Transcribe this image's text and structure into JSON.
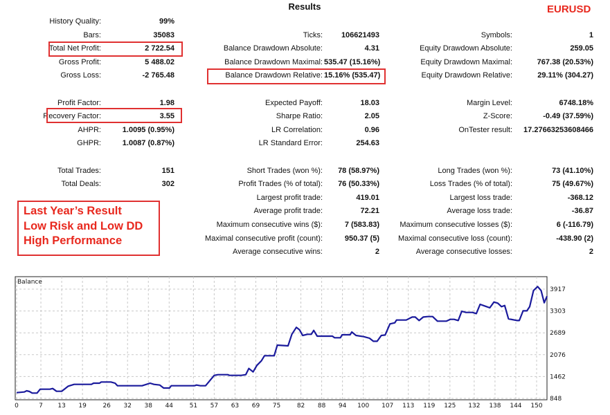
{
  "header": {
    "title": "Results",
    "symbol": "EURUSD"
  },
  "col1": [
    {
      "label": "History Quality:",
      "value": "99%"
    },
    {
      "label": "Bars:",
      "value": "35083"
    },
    {
      "label": "Total Net Profit:",
      "value": "2 722.54"
    },
    {
      "label": "Gross Profit:",
      "value": "5 488.02"
    },
    {
      "label": "Gross Loss:",
      "value": "-2 765.48"
    },
    {
      "label": "Profit Factor:",
      "value": "1.98"
    },
    {
      "label": "Recovery Factor:",
      "value": "3.55"
    },
    {
      "label": "AHPR:",
      "value": "1.0095 (0.95%)"
    },
    {
      "label": "GHPR:",
      "value": "1.0087 (0.87%)"
    },
    {
      "label": "Total Trades:",
      "value": "151"
    },
    {
      "label": "Total Deals:",
      "value": "302"
    }
  ],
  "col2": [
    {
      "label": "Ticks:",
      "value": "106621493"
    },
    {
      "label": "Balance Drawdown Absolute:",
      "value": "4.31"
    },
    {
      "label": "Balance Drawdown Maximal:",
      "value": "535.47 (15.16%)"
    },
    {
      "label": "Balance Drawdown Relative:",
      "value": "15.16% (535.47)"
    },
    {
      "label": "Expected Payoff:",
      "value": "18.03"
    },
    {
      "label": "Sharpe Ratio:",
      "value": "2.05"
    },
    {
      "label": "LR Correlation:",
      "value": "0.96"
    },
    {
      "label": "LR Standard Error:",
      "value": "254.63"
    },
    {
      "label": "Short Trades (won %):",
      "value": "78 (58.97%)"
    },
    {
      "label": "Profit Trades (% of total):",
      "value": "76 (50.33%)"
    },
    {
      "label": "Largest profit trade:",
      "value": "419.01"
    },
    {
      "label": "Average profit trade:",
      "value": "72.21"
    },
    {
      "label": "Maximum consecutive wins ($):",
      "value": "7 (583.83)"
    },
    {
      "label": "Maximal consecutive profit (count):",
      "value": "950.37 (5)"
    },
    {
      "label": "Average consecutive wins:",
      "value": "2"
    }
  ],
  "col3": [
    {
      "label": "Symbols:",
      "value": "1"
    },
    {
      "label": "Equity Drawdown Absolute:",
      "value": "259.05"
    },
    {
      "label": "Equity Drawdown Maximal:",
      "value": "767.38 (20.53%)"
    },
    {
      "label": "Equity Drawdown Relative:",
      "value": "29.11% (304.27)"
    },
    {
      "label": "Margin Level:",
      "value": "6748.18%"
    },
    {
      "label": "Z-Score:",
      "value": "-0.49 (37.59%)"
    },
    {
      "label": "OnTester result:",
      "value": "17.27663253608466"
    },
    {
      "label": "Long Trades (won %):",
      "value": "73 (41.10%)"
    },
    {
      "label": "Loss Trades (% of total):",
      "value": "75 (49.67%)"
    },
    {
      "label": "Largest loss trade:",
      "value": "-368.12"
    },
    {
      "label": "Average loss trade:",
      "value": "-36.87"
    },
    {
      "label": "Maximum consecutive losses ($):",
      "value": "6 (-116.79)"
    },
    {
      "label": "Maximal consecutive loss (count):",
      "value": "-438.90 (2)"
    },
    {
      "label": "Average consecutive losses:",
      "value": "2"
    }
  ],
  "note": {
    "lines": [
      "Last  Year’s Result",
      "Low Risk and Low DD",
      "High Performance"
    ]
  },
  "colors": {
    "highlight": "#e03030",
    "accent_text": "#e8281e",
    "line": "#1a1a9c"
  },
  "chart_data": {
    "type": "line",
    "title": "Balance",
    "xlabel": "",
    "ylabel": "",
    "x_ticks": [
      0,
      7,
      13,
      19,
      26,
      32,
      38,
      44,
      51,
      57,
      63,
      69,
      75,
      82,
      88,
      94,
      100,
      107,
      113,
      119,
      125,
      132,
      138,
      144,
      150
    ],
    "y_ticks": [
      848,
      1462,
      2076,
      2689,
      3303,
      3917
    ],
    "xlim": [
      0,
      153
    ],
    "ylim": [
      848,
      4100
    ],
    "grid": true,
    "series": [
      {
        "name": "Balance",
        "points": [
          [
            0,
            1010
          ],
          [
            2.2,
            1029
          ],
          [
            2.9,
            1062
          ],
          [
            3.7,
            1042
          ],
          [
            4.5,
            997
          ],
          [
            5.9,
            997
          ],
          [
            6.8,
            1107
          ],
          [
            9.6,
            1107
          ],
          [
            10.4,
            1126
          ],
          [
            11.5,
            1049
          ],
          [
            13,
            1049
          ],
          [
            14.9,
            1191
          ],
          [
            16.6,
            1243
          ],
          [
            21.6,
            1243
          ],
          [
            22.2,
            1275
          ],
          [
            23.9,
            1275
          ],
          [
            24.4,
            1308
          ],
          [
            27.2,
            1308
          ],
          [
            28.4,
            1275
          ],
          [
            29.1,
            1204
          ],
          [
            36.2,
            1204
          ],
          [
            38.5,
            1275
          ],
          [
            39.6,
            1243
          ],
          [
            41.3,
            1223
          ],
          [
            42.4,
            1139
          ],
          [
            44.1,
            1139
          ],
          [
            44.6,
            1204
          ],
          [
            51.3,
            1204
          ],
          [
            51.9,
            1223
          ],
          [
            53,
            1204
          ],
          [
            54.5,
            1204
          ],
          [
            57,
            1495
          ],
          [
            58.1,
            1515
          ],
          [
            60.9,
            1515
          ],
          [
            61.4,
            1495
          ],
          [
            64.8,
            1495
          ],
          [
            66.1,
            1515
          ],
          [
            67,
            1689
          ],
          [
            68.2,
            1592
          ],
          [
            69.3,
            1774
          ],
          [
            70.6,
            1903
          ],
          [
            71.5,
            2046
          ],
          [
            74.3,
            2046
          ],
          [
            75.2,
            2343
          ],
          [
            78.3,
            2324
          ],
          [
            79.4,
            2648
          ],
          [
            80.7,
            2842
          ],
          [
            81.6,
            2777
          ],
          [
            82.5,
            2615
          ],
          [
            83.9,
            2648
          ],
          [
            85,
            2648
          ],
          [
            85.7,
            2758
          ],
          [
            86.7,
            2596
          ],
          [
            91.1,
            2596
          ],
          [
            91.7,
            2551
          ],
          [
            93.4,
            2551
          ],
          [
            93.9,
            2635
          ],
          [
            96.2,
            2635
          ],
          [
            96.7,
            2712
          ],
          [
            97.9,
            2615
          ],
          [
            100.1,
            2583
          ],
          [
            101.8,
            2538
          ],
          [
            102.9,
            2453
          ],
          [
            104,
            2453
          ],
          [
            105.2,
            2615
          ],
          [
            106.3,
            2628
          ],
          [
            107.7,
            2939
          ],
          [
            109.1,
            2971
          ],
          [
            109.6,
            3049
          ],
          [
            112.4,
            3049
          ],
          [
            114.1,
            3133
          ],
          [
            115,
            3133
          ],
          [
            116.1,
            3036
          ],
          [
            117.3,
            3133
          ],
          [
            118.6,
            3146
          ],
          [
            120,
            3146
          ],
          [
            121.4,
            3017
          ],
          [
            124,
            3017
          ],
          [
            125.1,
            3068
          ],
          [
            126.2,
            3068
          ],
          [
            127.4,
            3036
          ],
          [
            128.4,
            3295
          ],
          [
            129.6,
            3263
          ],
          [
            131.5,
            3263
          ],
          [
            132.6,
            3230
          ],
          [
            133.7,
            3489
          ],
          [
            135.2,
            3437
          ],
          [
            136.5,
            3392
          ],
          [
            137.7,
            3554
          ],
          [
            138.8,
            3522
          ],
          [
            139.9,
            3424
          ],
          [
            140.8,
            3457
          ],
          [
            141.9,
            3081
          ],
          [
            144.4,
            3036
          ],
          [
            145,
            3036
          ],
          [
            146.1,
            3308
          ],
          [
            147.2,
            3308
          ],
          [
            148,
            3424
          ],
          [
            149.1,
            3877
          ],
          [
            150.3,
            3988
          ],
          [
            151.3,
            3877
          ],
          [
            152.2,
            3534
          ],
          [
            153,
            3716
          ]
        ]
      }
    ]
  }
}
